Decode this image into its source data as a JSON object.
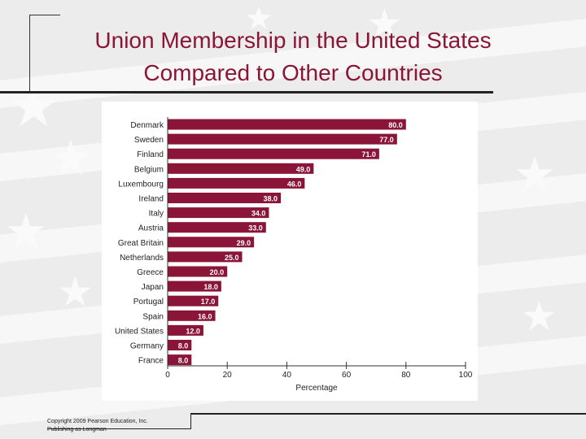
{
  "slide": {
    "title_line1": "Union Membership in the United States",
    "title_line2": "Compared to Other Countries",
    "copyright_line1": "Copyright 2009 Pearson Education, Inc.",
    "copyright_line2": "Publishing as Longman"
  },
  "colors": {
    "title": "#8a1538",
    "bar": "#8a1538",
    "bar_label": "#ffffff"
  },
  "chart_data": {
    "type": "bar",
    "orientation": "horizontal",
    "categories": [
      "Denmark",
      "Sweden",
      "Finland",
      "Belgium",
      "Luxembourg",
      "Ireland",
      "Italy",
      "Austria",
      "Great Britain",
      "Netherlands",
      "Greece",
      "Japan",
      "Portugal",
      "Spain",
      "United States",
      "Germany",
      "France"
    ],
    "values": [
      80.0,
      77.0,
      71.0,
      49.0,
      46.0,
      38.0,
      34.0,
      33.0,
      29.0,
      25.0,
      20.0,
      18.0,
      17.0,
      16.0,
      12.0,
      8.0,
      8.0
    ],
    "value_labels": [
      "80.0",
      "77.0",
      "71.0",
      "49.0",
      "46.0",
      "38.0",
      "34.0",
      "33.0",
      "29.0",
      "25.0",
      "20.0",
      "18.0",
      "17.0",
      "16.0",
      "12.0",
      "8.0",
      "8.0"
    ],
    "xlabel": "Percentage",
    "xlim": [
      0,
      100
    ],
    "xticks": [
      "0",
      "20",
      "40",
      "60",
      "80",
      "100"
    ],
    "grid": false
  }
}
